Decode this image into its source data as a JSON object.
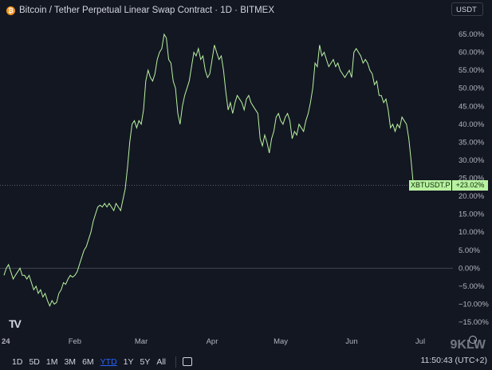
{
  "header": {
    "title": "Bitcoin / Tether Perpetual Linear Swap Contract · 1D · BITMEX",
    "currency": "USDT"
  },
  "chart_data": {
    "type": "line",
    "title": "",
    "xlabel": "",
    "ylabel": "",
    "ylim": [
      -17,
      68
    ],
    "grid": false,
    "line_color": "#b8f2a0",
    "y_ticks": [
      "65.00%",
      "60.00%",
      "55.00%",
      "50.00%",
      "45.00%",
      "40.00%",
      "35.00%",
      "30.00%",
      "25.00%",
      "20.00%",
      "15.00%",
      "10.00%",
      "5.00%",
      "0.00%",
      "−5.00%",
      "−10.00%",
      "−15.00%"
    ],
    "y_tick_values": [
      65,
      60,
      55,
      50,
      45,
      40,
      35,
      30,
      25,
      20,
      15,
      10,
      5,
      0,
      -5,
      -10,
      -15
    ],
    "x_ticks": [
      "24",
      "Feb",
      "Mar",
      "Apr",
      "May",
      "Jun",
      "Jul"
    ],
    "x_tick_days": [
      0,
      31,
      60,
      91,
      121,
      152,
      182
    ],
    "x_range_days": [
      0,
      190
    ],
    "series": [
      {
        "values": [
          [
            0,
            -2
          ],
          [
            1,
            0
          ],
          [
            2,
            1
          ],
          [
            3,
            -1
          ],
          [
            4,
            -3
          ],
          [
            5,
            -2
          ],
          [
            6,
            -1
          ],
          [
            7,
            0
          ],
          [
            8,
            -2
          ],
          [
            9,
            -2
          ],
          [
            10,
            -3
          ],
          [
            11,
            -2
          ],
          [
            12,
            -4
          ],
          [
            13,
            -6
          ],
          [
            14,
            -5
          ],
          [
            15,
            -7
          ],
          [
            16,
            -6
          ],
          [
            17,
            -8
          ],
          [
            18,
            -7
          ],
          [
            19,
            -9
          ],
          [
            20,
            -10.5
          ],
          [
            21,
            -9
          ],
          [
            22,
            -10
          ],
          [
            23,
            -9.5
          ],
          [
            24,
            -7
          ],
          [
            25,
            -6
          ],
          [
            26,
            -4
          ],
          [
            27,
            -4.5
          ],
          [
            28,
            -3
          ],
          [
            29,
            -2
          ],
          [
            30,
            -2.5
          ],
          [
            31,
            -2
          ],
          [
            32,
            -1
          ],
          [
            33,
            1
          ],
          [
            34,
            3
          ],
          [
            35,
            5
          ],
          [
            36,
            6
          ],
          [
            37,
            8
          ],
          [
            38,
            10
          ],
          [
            39,
            13
          ],
          [
            40,
            15
          ],
          [
            41,
            17
          ],
          [
            42,
            17.5
          ],
          [
            43,
            17
          ],
          [
            44,
            18
          ],
          [
            45,
            17
          ],
          [
            46,
            18
          ],
          [
            47,
            17
          ],
          [
            48,
            16
          ],
          [
            49,
            18
          ],
          [
            50,
            17
          ],
          [
            51,
            16
          ],
          [
            52,
            19
          ],
          [
            53,
            22
          ],
          [
            54,
            28
          ],
          [
            55,
            35
          ],
          [
            56,
            40
          ],
          [
            57,
            41
          ],
          [
            58,
            39
          ],
          [
            59,
            41
          ],
          [
            60,
            40
          ],
          [
            61,
            44
          ],
          [
            62,
            52
          ],
          [
            63,
            55
          ],
          [
            64,
            53
          ],
          [
            65,
            52
          ],
          [
            66,
            54
          ],
          [
            67,
            58
          ],
          [
            68,
            60
          ],
          [
            69,
            61
          ],
          [
            70,
            65
          ],
          [
            71,
            64
          ],
          [
            72,
            58
          ],
          [
            73,
            57
          ],
          [
            74,
            52
          ],
          [
            75,
            50
          ],
          [
            76,
            43
          ],
          [
            77,
            40
          ],
          [
            78,
            45
          ],
          [
            79,
            48
          ],
          [
            80,
            50
          ],
          [
            81,
            52
          ],
          [
            82,
            56
          ],
          [
            83,
            60
          ],
          [
            84,
            59
          ],
          [
            85,
            61
          ],
          [
            86,
            58
          ],
          [
            87,
            59
          ],
          [
            88,
            55
          ],
          [
            89,
            53
          ],
          [
            90,
            54
          ],
          [
            91,
            58
          ],
          [
            92,
            62
          ],
          [
            93,
            60
          ],
          [
            94,
            58
          ],
          [
            95,
            59
          ],
          [
            96,
            55
          ],
          [
            97,
            49
          ],
          [
            98,
            44
          ],
          [
            99,
            46
          ],
          [
            100,
            43
          ],
          [
            101,
            46
          ],
          [
            102,
            48
          ],
          [
            103,
            47
          ],
          [
            104,
            46
          ],
          [
            105,
            44
          ],
          [
            106,
            47
          ],
          [
            107,
            48
          ],
          [
            108,
            46
          ],
          [
            109,
            45
          ],
          [
            110,
            44
          ],
          [
            111,
            43
          ],
          [
            112,
            36
          ],
          [
            113,
            34
          ],
          [
            114,
            37
          ],
          [
            115,
            35
          ],
          [
            116,
            32
          ],
          [
            117,
            36
          ],
          [
            118,
            38
          ],
          [
            119,
            42
          ],
          [
            120,
            43
          ],
          [
            121,
            41
          ],
          [
            122,
            40
          ],
          [
            123,
            42
          ],
          [
            124,
            43
          ],
          [
            125,
            41
          ],
          [
            126,
            36
          ],
          [
            127,
            38
          ],
          [
            128,
            37
          ],
          [
            129,
            40
          ],
          [
            130,
            39
          ],
          [
            131,
            38
          ],
          [
            132,
            41
          ],
          [
            133,
            43
          ],
          [
            134,
            46
          ],
          [
            135,
            50
          ],
          [
            136,
            57
          ],
          [
            137,
            56
          ],
          [
            138,
            62
          ],
          [
            139,
            59
          ],
          [
            140,
            60
          ],
          [
            141,
            58
          ],
          [
            142,
            56
          ],
          [
            143,
            57
          ],
          [
            144,
            58
          ],
          [
            145,
            56
          ],
          [
            146,
            57
          ],
          [
            147,
            55
          ],
          [
            148,
            54
          ],
          [
            149,
            53
          ],
          [
            150,
            54
          ],
          [
            151,
            55
          ],
          [
            152,
            53
          ],
          [
            153,
            60
          ],
          [
            154,
            61
          ],
          [
            155,
            60
          ],
          [
            156,
            59
          ],
          [
            157,
            57
          ],
          [
            158,
            58
          ],
          [
            159,
            57
          ],
          [
            160,
            55
          ],
          [
            161,
            54
          ],
          [
            162,
            51
          ],
          [
            163,
            52
          ],
          [
            164,
            48
          ],
          [
            165,
            48
          ],
          [
            166,
            46
          ],
          [
            167,
            47
          ],
          [
            168,
            44
          ],
          [
            169,
            39
          ],
          [
            170,
            40
          ],
          [
            171,
            38
          ],
          [
            172,
            40
          ],
          [
            173,
            39
          ],
          [
            174,
            42
          ],
          [
            175,
            41
          ],
          [
            176,
            40
          ],
          [
            177,
            36
          ],
          [
            178,
            30
          ],
          [
            179,
            23
          ]
        ]
      }
    ],
    "last_value": {
      "symbol": "XBTUSDT.P",
      "label": "+23.02%",
      "value": 23.02
    }
  },
  "toolbar": {
    "timeframes": [
      "1D",
      "5D",
      "1M",
      "3M",
      "6M",
      "YTD",
      "1Y",
      "5Y",
      "All"
    ],
    "active": "YTD"
  },
  "status": {
    "clock": "11:50:43 (UTC+2)"
  },
  "watermark": "9KLW"
}
